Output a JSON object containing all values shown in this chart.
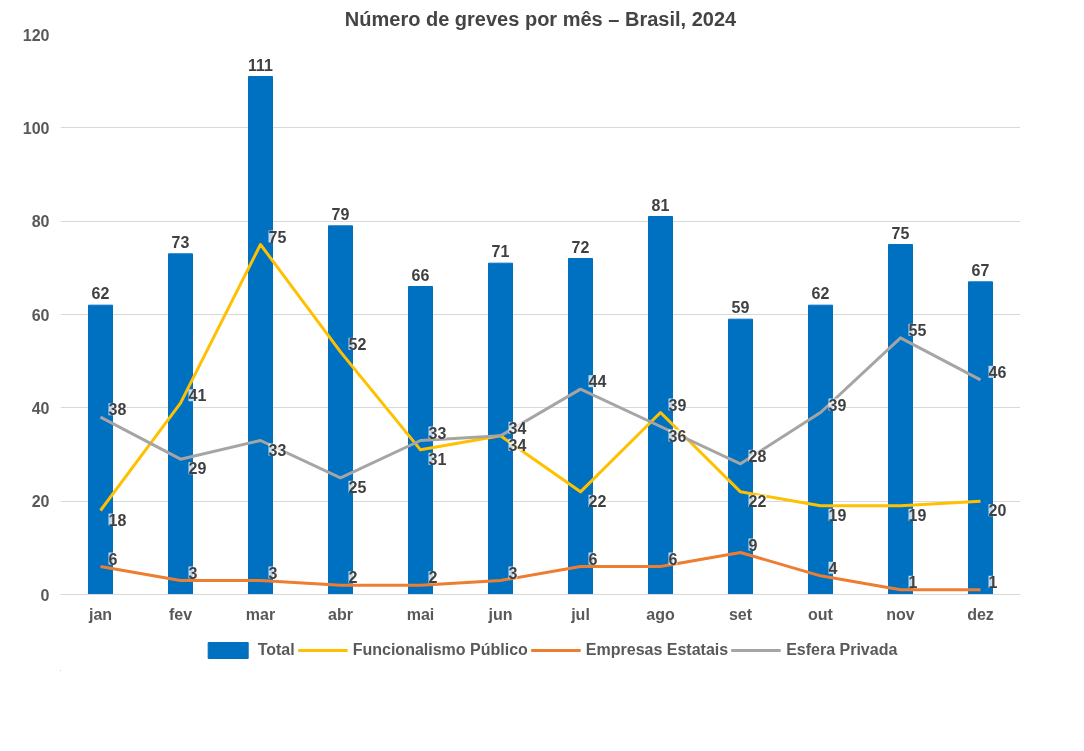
{
  "chart_data": {
    "type": "bar",
    "title": "Número de greves por mês – Brasil, 2024",
    "categories": [
      "jan",
      "fev",
      "mar",
      "abr",
      "mai",
      "jun",
      "jul",
      "ago",
      "set",
      "out",
      "nov",
      "dez"
    ],
    "series": [
      {
        "name": "Total",
        "color": "#0070c0",
        "values": [
          62,
          73,
          111,
          79,
          66,
          71,
          72,
          81,
          59,
          62,
          75,
          67
        ]
      },
      {
        "name": "Funcionalismo Público",
        "type": "line",
        "color": "#ffc000",
        "values": [
          18,
          41,
          75,
          52,
          31,
          34,
          22,
          39,
          22,
          19,
          19,
          20
        ]
      },
      {
        "name": "Empresas Estatais",
        "type": "line",
        "color": "#ed7d31",
        "values": [
          6,
          3,
          3,
          2,
          2,
          3,
          6,
          6,
          9,
          4,
          1,
          1
        ]
      },
      {
        "name": "Esfera Privada",
        "type": "line",
        "color": "#a5a5a5",
        "values": [
          38,
          29,
          33,
          25,
          33,
          34,
          44,
          36,
          28,
          39,
          55,
          46
        ]
      }
    ],
    "ylim": [
      0,
      120
    ],
    "yticks": [
      0,
      20,
      40,
      60,
      80,
      100,
      120
    ],
    "grid": "y",
    "legend": "bottom",
    "data_labels": true,
    "marker": "none",
    "line_style": "solid"
  }
}
